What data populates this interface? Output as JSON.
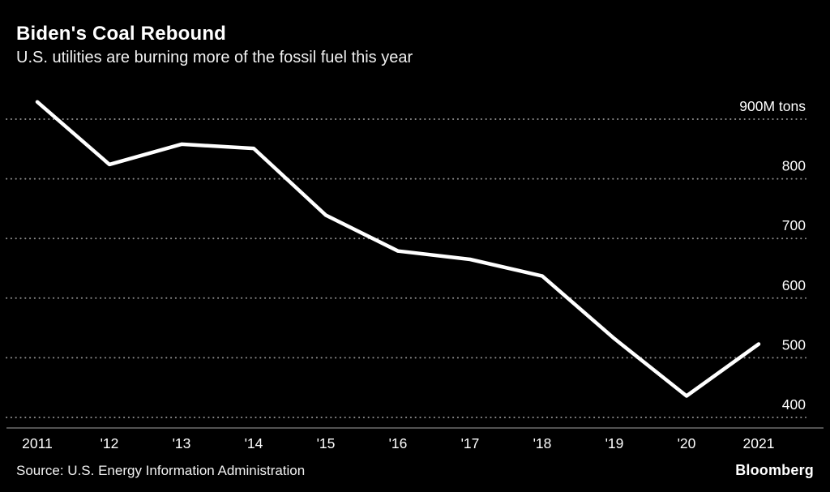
{
  "header": {
    "title": "Biden's Coal Rebound",
    "subtitle": "U.S. utilities are burning more of the fossil fuel this year"
  },
  "footer": {
    "source": "Source: U.S. Energy Information Administration",
    "brand": "Bloomberg"
  },
  "colors": {
    "background": "#000000",
    "line": "#ffffff",
    "text": "#ffffff",
    "gridline": "#8d8d8d"
  },
  "chart_data": {
    "type": "line",
    "title": "Biden's Coal Rebound",
    "subtitle": "U.S. utilities are burning more of the fossil fuel this year",
    "unit": "M tons",
    "categories": [
      "2011",
      "'12",
      "'13",
      "'14",
      "'15",
      "'16",
      "'17",
      "'18",
      "'19",
      "'20",
      "2021"
    ],
    "values": [
      929,
      824,
      858,
      851,
      739,
      679,
      665,
      637,
      532,
      436,
      523
    ],
    "y_ticks": [
      900,
      800,
      700,
      600,
      500,
      400
    ],
    "y_tick_labels": [
      "900M tons",
      "800",
      "700",
      "600",
      "500",
      "400"
    ],
    "ylim": [
      368,
      931
    ],
    "grid": "dotted-horizontal",
    "legend": "none",
    "line_color": "#ffffff",
    "background": "#000000"
  }
}
